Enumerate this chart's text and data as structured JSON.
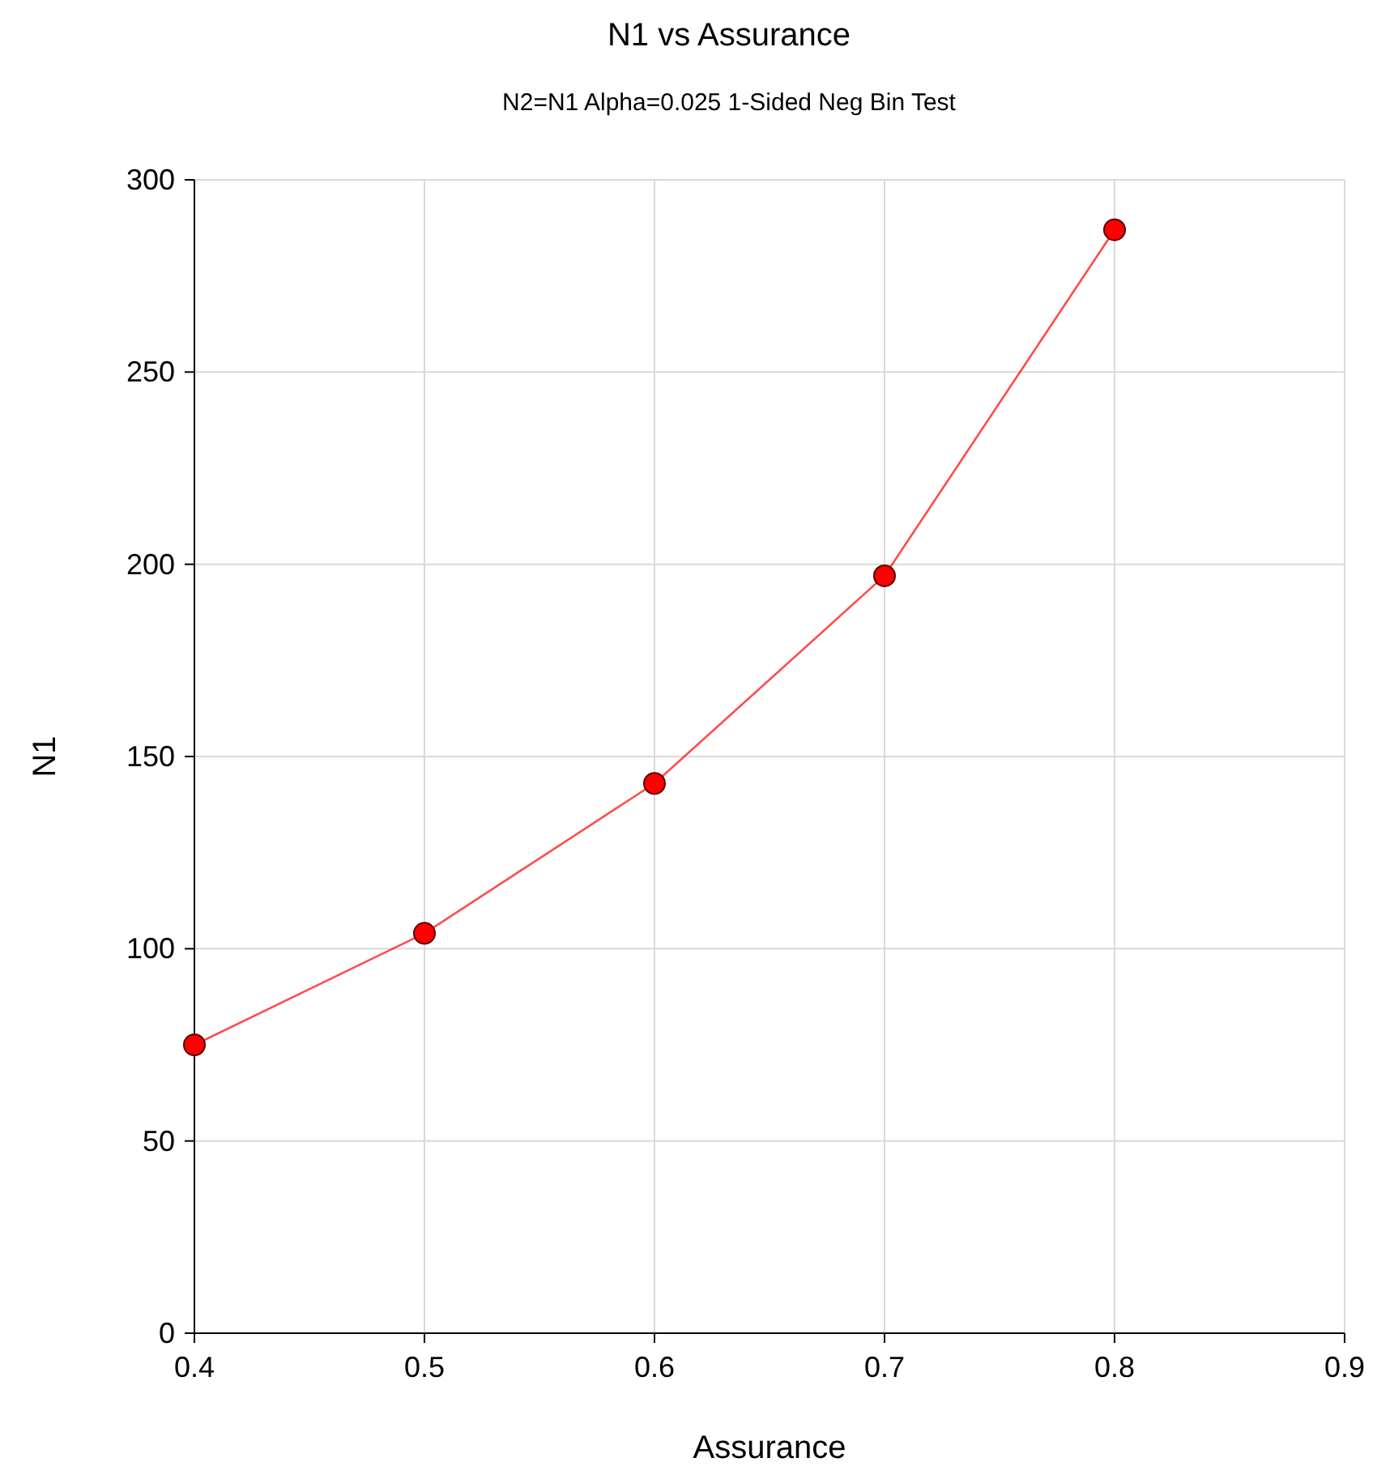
{
  "chart_data": {
    "type": "line",
    "title": "N1 vs Assurance",
    "subtitle": "N2=N1 Alpha=0.025 1-Sided Neg Bin Test",
    "xlabel": "Assurance",
    "ylabel": "N1",
    "x": [
      0.4,
      0.5,
      0.6,
      0.7,
      0.8
    ],
    "series": [
      {
        "color": "#ff0000",
        "values": [
          75,
          104,
          143,
          197,
          287
        ]
      }
    ],
    "xlim": [
      0.4,
      0.9
    ],
    "xticks": [
      0.4,
      0.5,
      0.6,
      0.7,
      0.8,
      0.9
    ],
    "ylim": [
      0,
      300
    ],
    "yticks": [
      0,
      50,
      100,
      150,
      200,
      250,
      300
    ],
    "grid": true,
    "marker": "circle",
    "line_style": "solid"
  }
}
